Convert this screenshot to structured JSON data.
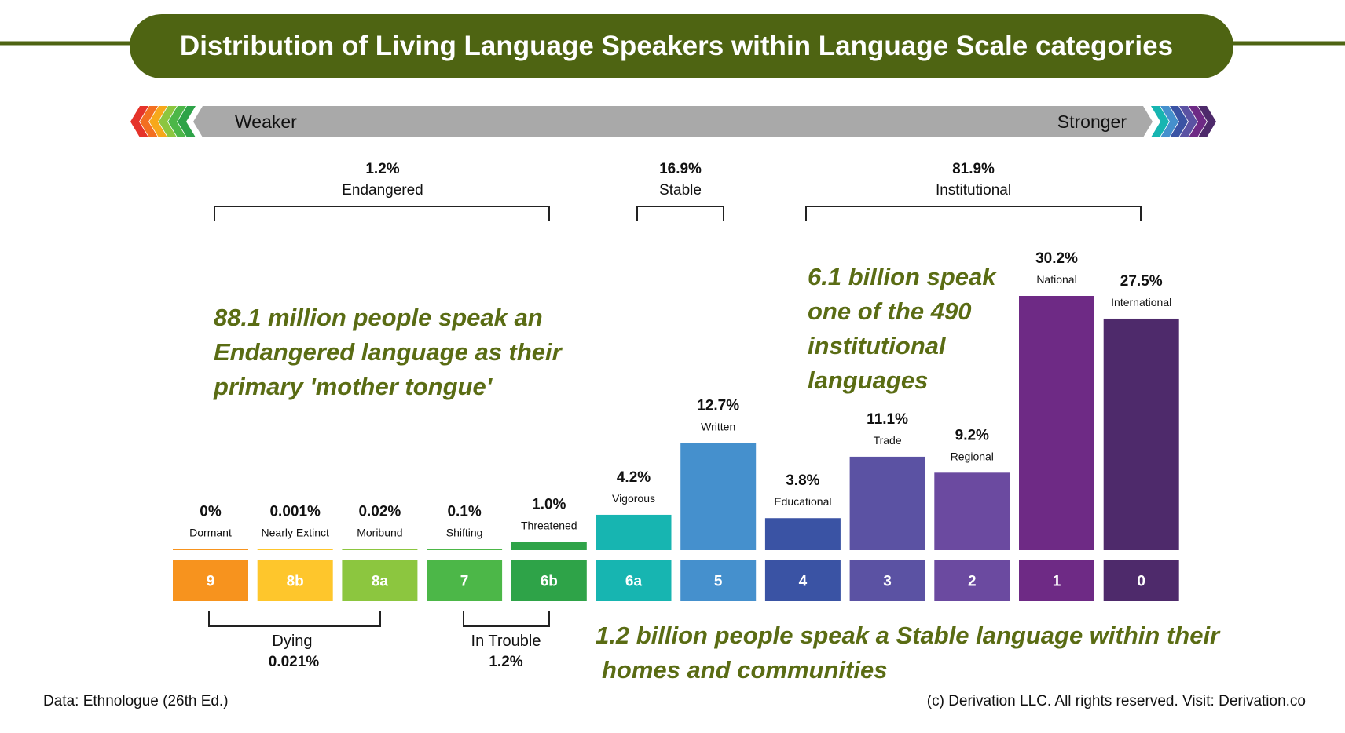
{
  "title": "Distribution of Living Language Speakers within Language Scale categories",
  "scale": {
    "weaker_label": "Weaker",
    "stronger_label": "Stronger"
  },
  "groups_top": [
    {
      "percent": "1.2%",
      "name": "Endangered"
    },
    {
      "percent": "16.9%",
      "name": "Stable"
    },
    {
      "percent": "81.9%",
      "name": "Institutional"
    }
  ],
  "groups_bottom": [
    {
      "name": "Dying",
      "percent": "0.021%"
    },
    {
      "name": "In Trouble",
      "percent": "1.2%"
    }
  ],
  "annotations": {
    "endangered": [
      "88.1 million people speak an",
      "Endangered language as their",
      "primary 'mother tongue'"
    ],
    "institutional": [
      "6.1 billion speak",
      "one of the 490",
      "institutional",
      "languages"
    ],
    "stable": [
      "1.2 billion people speak a Stable language within their",
      "homes and communities"
    ]
  },
  "chart_data": {
    "type": "bar",
    "title": "Distribution of Living Language Speakers within Language Scale categories",
    "xlabel": "",
    "ylabel": "",
    "ylim": [
      0,
      30.2
    ],
    "categories": [
      "9",
      "8b",
      "8a",
      "7",
      "6b",
      "6a",
      "5",
      "4",
      "3",
      "2",
      "1",
      "0"
    ],
    "names": [
      "Dormant",
      "Nearly Extinct",
      "Moribund",
      "Shifting",
      "Threatened",
      "Vigorous",
      "Written",
      "Educational",
      "Trade",
      "Regional",
      "National",
      "International"
    ],
    "values": [
      0,
      0.001,
      0.02,
      0.1,
      1.0,
      4.2,
      12.7,
      3.8,
      11.1,
      9.2,
      30.2,
      27.5
    ],
    "value_labels": [
      "0%",
      "0.001%",
      "0.02%",
      "0.1%",
      "1.0%",
      "4.2%",
      "12.7%",
      "3.8%",
      "11.1%",
      "9.2%",
      "30.2%",
      "27.5%"
    ],
    "colors": [
      "#f7931e",
      "#fec62c",
      "#8cc63f",
      "#4cb748",
      "#2ea348",
      "#17b5b1",
      "#4590cd",
      "#3a53a4",
      "#5b52a3",
      "#6b4aa0",
      "#6e2a85",
      "#4e2a6b"
    ]
  },
  "footer": {
    "source": "Data: Ethnologue (26th Ed.)",
    "copyright": "(c) Derivation LLC. All rights reserved. Visit: Derivation.co"
  },
  "colors": {
    "title_bg": "#4e6412",
    "annotation_text": "#5a6c14",
    "scale_bar": "#a9a9a9",
    "bracket": "#222222"
  }
}
